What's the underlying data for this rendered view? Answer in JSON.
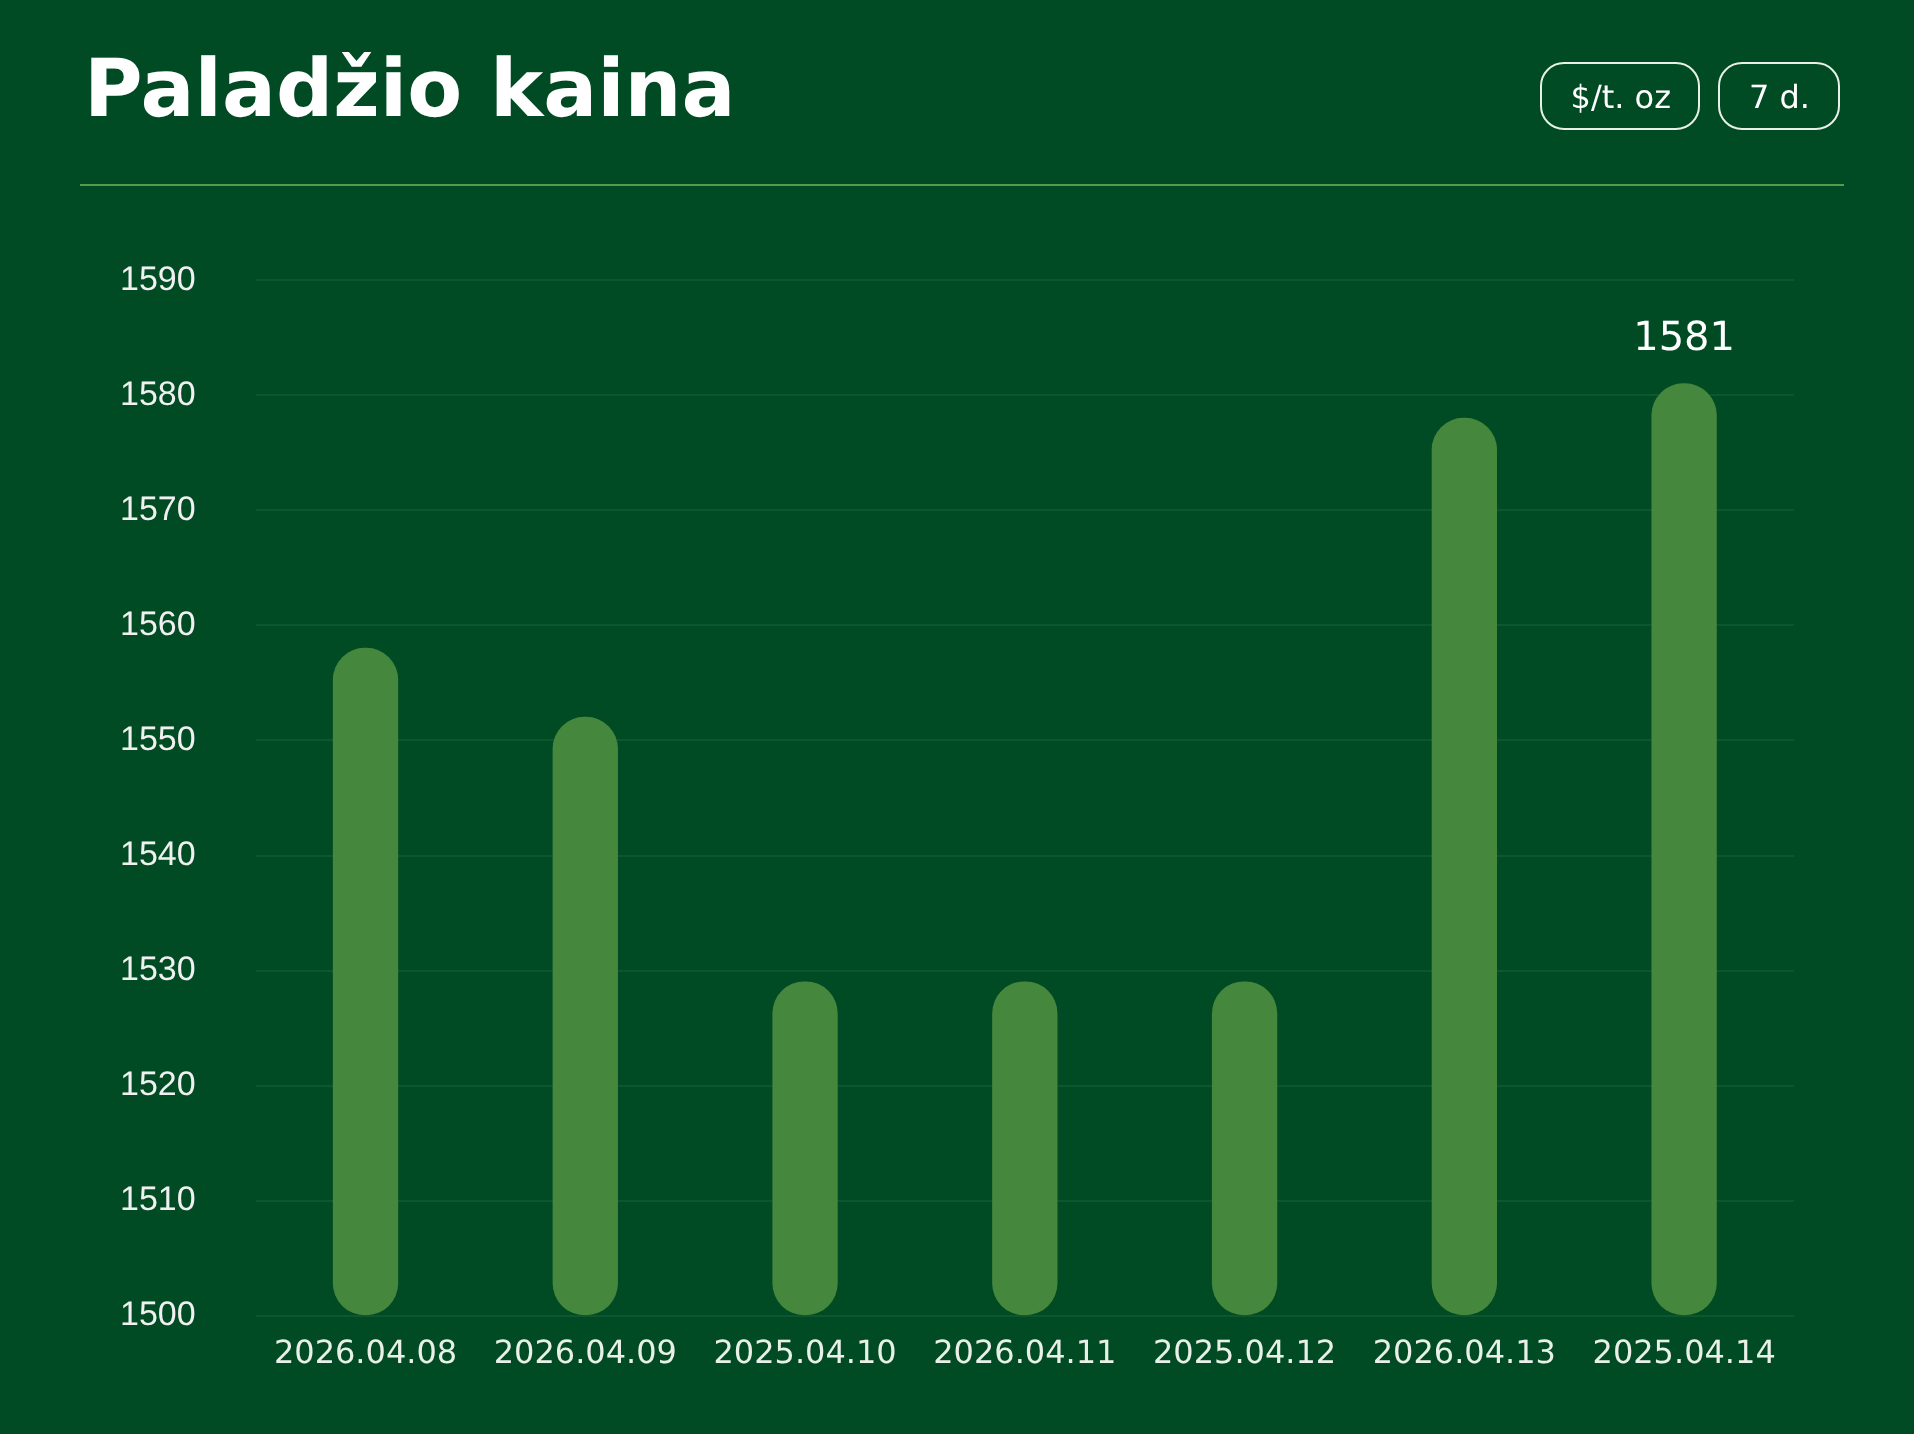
{
  "chart_data": {
    "type": "bar",
    "title": "Paladžio kaina",
    "annotations": [
      "$/t. oz",
      "7 d."
    ],
    "categories": [
      "2026.04.08",
      "2026.04.09",
      "2025.04.10",
      "2026.04.11",
      "2025.04.12",
      "2026.04.13",
      "2025.04.14"
    ],
    "values": [
      1558,
      1552,
      1529,
      1529,
      1529,
      1578,
      1581
    ],
    "value_labels": [
      null,
      null,
      null,
      null,
      null,
      null,
      "1581"
    ],
    "color": "#46873e",
    "ylim": [
      1500,
      1590
    ],
    "yticks": [
      1500,
      1510,
      1520,
      1530,
      1540,
      1550,
      1560,
      1570,
      1580,
      1590
    ],
    "grid": "y",
    "legend": false
  }
}
